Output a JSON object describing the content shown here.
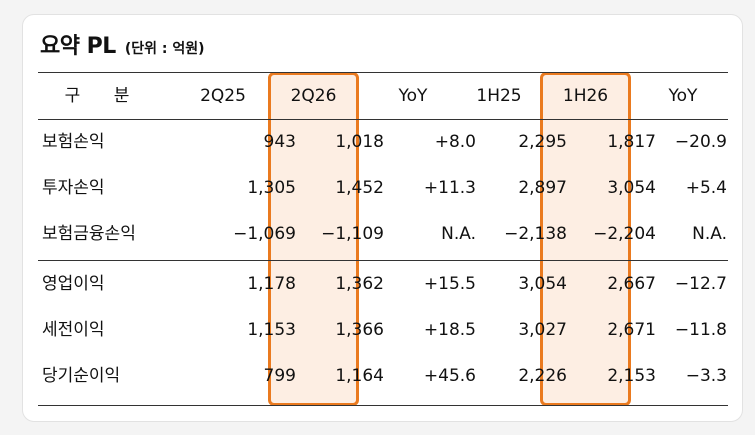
{
  "title": "요약 PL",
  "unit": "(단위 : 억원)",
  "columns": [
    "구 분",
    "2Q25",
    "2Q26",
    "YoY",
    "1H25",
    "1H26",
    "YoY"
  ],
  "rows": [
    {
      "label": "보험손익",
      "cells": [
        "943",
        "1,018",
        "+8.0",
        "2,295",
        "1,817",
        "−20.9"
      ]
    },
    {
      "label": "투자손익",
      "cells": [
        "1,305",
        "1,452",
        "+11.3",
        "2,897",
        "3,054",
        "+5.4"
      ]
    },
    {
      "label": "보험금융손익",
      "cells": [
        "−1,069",
        "−1,109",
        "N.A.",
        "−2,138",
        "−2,204",
        "N.A."
      ]
    },
    {
      "label": "영업이익",
      "cells": [
        "1,178",
        "1,362",
        "+15.5",
        "3,054",
        "2,667",
        "−12.7"
      ]
    },
    {
      "label": "세전이익",
      "cells": [
        "1,153",
        "1,366",
        "+18.5",
        "3,027",
        "2,671",
        "−11.8"
      ]
    },
    {
      "label": "당기순이익",
      "cells": [
        "799",
        "1,164",
        "+45.6",
        "2,226",
        "2,153",
        "−3.3"
      ]
    }
  ],
  "colors": {
    "highlight_border": "#ea7a1f",
    "highlight_fill": "#fdeee3"
  }
}
